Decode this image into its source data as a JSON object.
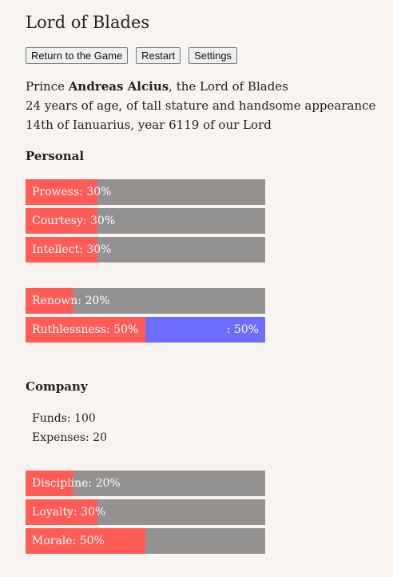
{
  "title": "Lord of Blades",
  "toolbar": {
    "return_label": "Return to the Game",
    "restart_label": "Restart",
    "settings_label": "Settings"
  },
  "intro": {
    "prefix": "Prince ",
    "name": "Andreas Alcius",
    "suffix": ", the Lord of Blades",
    "line2": "24 years of age, of tall stature and handsome appearance",
    "line3": "14th of Ianuarius, year 6119 of our Lord"
  },
  "personal": {
    "title": "Personal",
    "prowess": {
      "label": "Prowess: 30%",
      "value": 0.3
    },
    "courtesy": {
      "label": "Courtesy: 30%",
      "value": 0.3
    },
    "intellect": {
      "label": "Intellect: 30%",
      "value": 0.3
    },
    "renown": {
      "label": "Renown: 20%",
      "value": 0.2
    },
    "ruthlessness": {
      "label": "Ruthlessness: 50%",
      "value": 0.5,
      "right_label": ": 50%",
      "right_value": 0.5
    }
  },
  "company": {
    "title": "Company",
    "funds": "Funds: 100",
    "expenses": "Expenses: 20",
    "discipline": {
      "label": "Discipline: 20%",
      "value": 0.2
    },
    "loyalty": {
      "label": "Loyalty: 30%",
      "value": 0.3
    },
    "morale": {
      "label": "Morale: 50%",
      "value": 0.5
    }
  },
  "colors": {
    "fill": "#ff5c57",
    "fill_right": "#6c6cff",
    "track": "#949290",
    "background": "#f7f4f2"
  }
}
